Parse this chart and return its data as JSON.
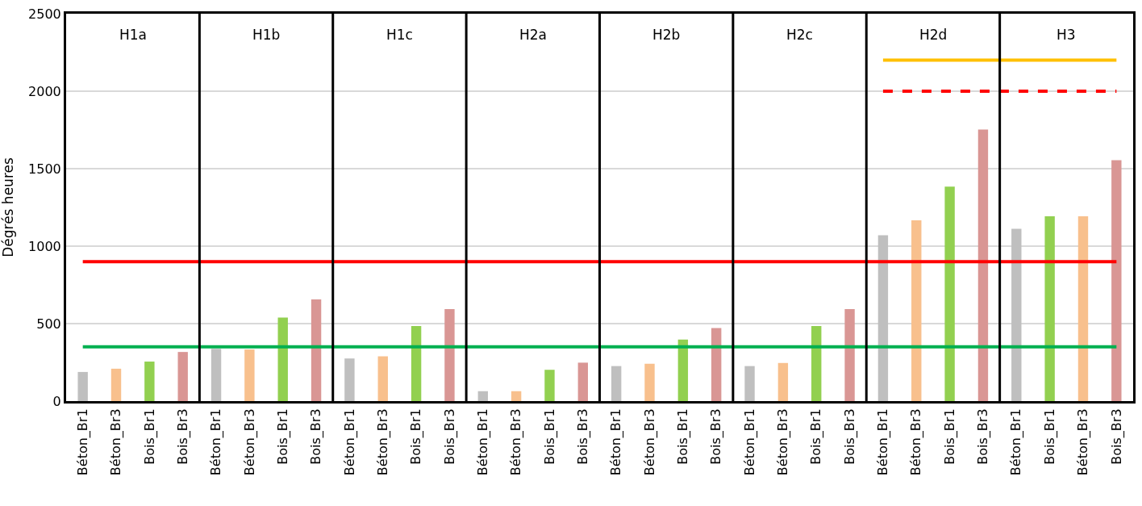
{
  "chart_data": {
    "type": "bar",
    "ylabel": "Dégrés heures",
    "categories": [
      "Béton_Br1",
      "Béton_Br3",
      "Bois_Br1",
      "Bois_Br3",
      "Béton_Br1",
      "Béton_Br3",
      "Bois_Br1",
      "Bois_Br3",
      "Béton_Br1",
      "Béton_Br3",
      "Bois_Br1",
      "Bois_Br3",
      "Béton_Br1",
      "Béton_Br3",
      "Bois_Br1",
      "Bois_Br3",
      "Béton_Br1",
      "Béton_Br3",
      "Bois_Br1",
      "Bois_Br3",
      "Béton_Br1",
      "Béton_Br3",
      "Bois_Br1",
      "Bois_Br3",
      "Béton_Br1",
      "Béton_Br3",
      "Bois_Br1",
      "Bois_Br3",
      "Béton_Br1",
      "Bois_Br1",
      "Béton_Br3",
      "Bois_Br3"
    ],
    "ylim": [
      0,
      2500
    ],
    "yticks": [
      0,
      500,
      1000,
      1500,
      2000,
      2500
    ],
    "grid": "y",
    "series": [
      {
        "values": [
          188,
          209,
          255,
          317,
          337,
          333,
          539,
          656,
          275,
          289,
          484,
          594,
          64,
          64,
          202,
          248,
          226,
          241,
          397,
          471,
          226,
          246,
          485,
          594,
          1070,
          1167,
          1384,
          1752,
          1112,
          1193,
          1193,
          1555
        ],
        "colors": [
          "#bfbfbf",
          "#f8c08d",
          "#92d050",
          "#d99694",
          "#bfbfbf",
          "#f8c08d",
          "#92d050",
          "#d99694",
          "#bfbfbf",
          "#f8c08d",
          "#92d050",
          "#d99694",
          "#bfbfbf",
          "#f8c08d",
          "#92d050",
          "#d99694",
          "#bfbfbf",
          "#f8c08d",
          "#92d050",
          "#d99694",
          "#bfbfbf",
          "#f8c08d",
          "#92d050",
          "#d99694",
          "#bfbfbf",
          "#f8c08d",
          "#92d050",
          "#d99694",
          "#bfbfbf",
          "#92d050",
          "#f8c08d",
          "#d99694"
        ]
      },
      {
        "type": "line",
        "values": [
          900,
          900,
          900,
          900,
          900,
          900,
          900,
          900,
          900,
          900,
          900,
          900,
          900,
          900,
          900,
          900,
          900,
          900,
          900,
          900,
          900,
          900,
          900,
          900,
          900,
          900,
          900,
          900,
          900,
          900,
          900,
          900
        ],
        "color": "#ff0000",
        "line_style": "solid"
      },
      {
        "type": "line",
        "values": [
          350,
          350,
          350,
          350,
          350,
          350,
          350,
          350,
          350,
          350,
          350,
          350,
          350,
          350,
          350,
          350,
          350,
          350,
          350,
          350,
          350,
          350,
          350,
          350,
          350,
          350,
          350,
          350,
          350,
          350,
          350,
          350
        ],
        "color": "#00b050",
        "line_style": "solid"
      },
      {
        "type": "line",
        "values": [
          null,
          null,
          null,
          null,
          null,
          null,
          null,
          null,
          null,
          null,
          null,
          null,
          null,
          null,
          null,
          null,
          null,
          null,
          null,
          null,
          null,
          null,
          null,
          null,
          2200,
          2200,
          2200,
          2200,
          2200,
          2200,
          2200,
          2200
        ],
        "color": "#ffc000",
        "line_style": "solid"
      },
      {
        "type": "line",
        "values": [
          null,
          null,
          null,
          null,
          null,
          null,
          null,
          null,
          null,
          null,
          null,
          null,
          null,
          null,
          null,
          null,
          null,
          null,
          null,
          null,
          null,
          null,
          null,
          null,
          2000,
          2000,
          2000,
          2000,
          2000,
          2000,
          2000,
          2000
        ],
        "color": "#ff0000",
        "line_style": "dashed"
      }
    ],
    "annotations": [
      "H1a",
      "H1b",
      "H1c",
      "H2a",
      "H2b",
      "H2c",
      "H2d",
      "H3"
    ]
  }
}
